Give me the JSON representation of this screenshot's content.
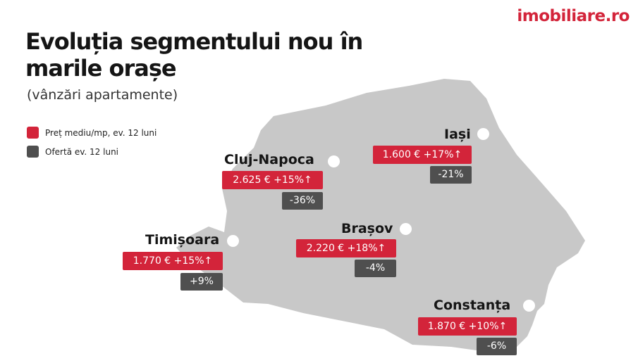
{
  "brand": {
    "logo_text": "imobiliare.ro"
  },
  "header": {
    "title_line1": "Evoluția segmentului nou în",
    "title_line2": "marile orașe",
    "subtitle": "(vânzări apartamente)"
  },
  "legend": {
    "items": [
      {
        "label": "Preț mediu/mp, ev. 12 luni",
        "color": "#d3243a"
      },
      {
        "label": "Ofertă ev. 12 luni",
        "color": "#4f4f4f"
      }
    ]
  },
  "map": {
    "region": "Romania",
    "fill_color": "#c8c8c8"
  },
  "cities": [
    {
      "name": "Cluj-Napoca",
      "price": "2.625 € +15%↑",
      "offer": "-36%"
    },
    {
      "name": "Iași",
      "price": "1.600 € +17%↑",
      "offer": "-21%"
    },
    {
      "name": "Brașov",
      "price": "2.220 € +18%↑",
      "offer": "-4%"
    },
    {
      "name": "Timișoara",
      "price": "1.770 € +15%↑",
      "offer": "+9%"
    },
    {
      "name": "Constanța",
      "price": "1.870 € +10%↑",
      "offer": "-6%"
    }
  ]
}
